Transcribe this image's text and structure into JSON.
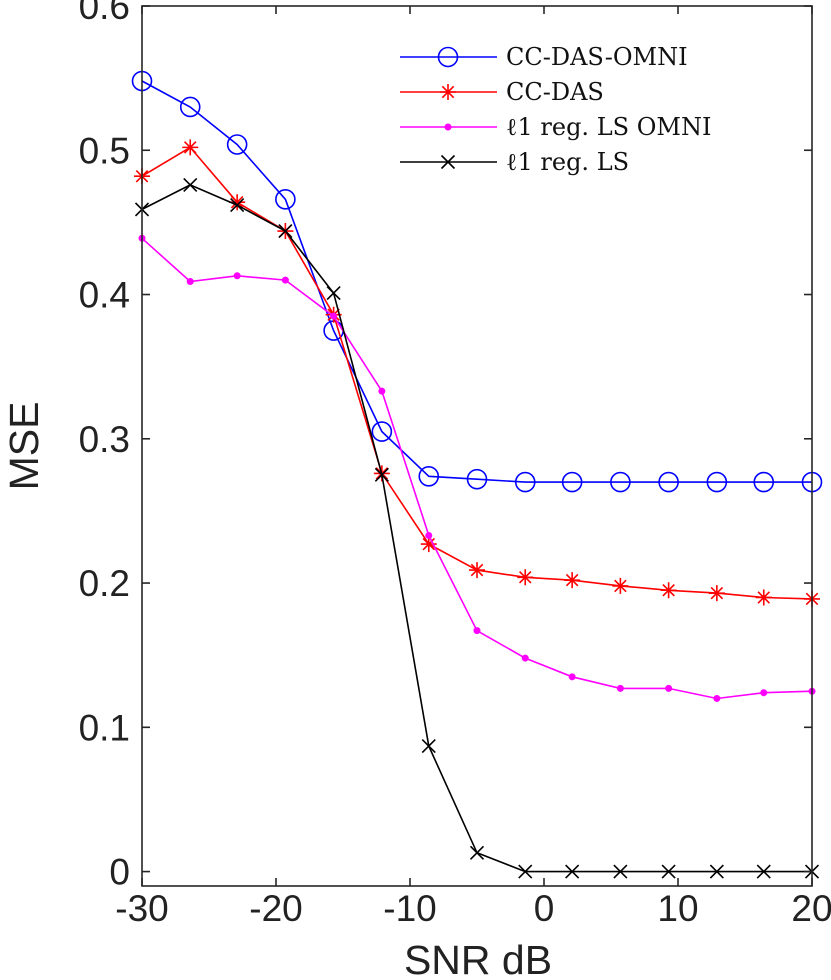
{
  "chart_data": {
    "type": "line",
    "title": "",
    "xlabel": "SNR  dB",
    "ylabel": "MSE",
    "xlim": [
      -30,
      20
    ],
    "ylim": [
      -0.01,
      0.6
    ],
    "x_ticks": [
      -30,
      -20,
      -10,
      0,
      10,
      20
    ],
    "x_tick_labels": [
      "-30",
      "-20",
      "-10",
      "0",
      "10",
      "20"
    ],
    "y_ticks": [
      0,
      0.1,
      0.2,
      0.3,
      0.4,
      0.5,
      0.6
    ],
    "y_tick_labels": [
      "0",
      "0.1",
      "0.2",
      "0.3",
      "0.4",
      "0.5",
      "0.6"
    ],
    "grid": false,
    "legend_position": "top-right",
    "x": [
      -30,
      -26.4,
      -22.9,
      -19.3,
      -15.7,
      -12.1,
      -8.6,
      -5,
      -1.4,
      2.1,
      5.7,
      9.3,
      12.9,
      16.4,
      20
    ],
    "series": [
      {
        "name": "CC-DAS-OMNI",
        "color": "#0000ff",
        "marker": "circle",
        "values": [
          0.548,
          0.53,
          0.504,
          0.466,
          0.375,
          0.305,
          0.274,
          0.272,
          0.27,
          0.27,
          0.27,
          0.27,
          0.27,
          0.27,
          0.27
        ]
      },
      {
        "name": "CC-DAS",
        "color": "#ff0000",
        "marker": "asterisk",
        "values": [
          0.482,
          0.502,
          0.464,
          0.444,
          0.386,
          0.276,
          0.227,
          0.209,
          0.204,
          0.202,
          0.198,
          0.195,
          0.193,
          0.19,
          0.189
        ]
      },
      {
        "name": "ℓ1 reg. LS OMNI",
        "color": "#ff00ff",
        "marker": "dot",
        "values": [
          0.439,
          0.409,
          0.413,
          0.41,
          0.385,
          0.333,
          0.233,
          0.167,
          0.148,
          0.135,
          0.127,
          0.127,
          0.12,
          0.124,
          0.125
        ]
      },
      {
        "name": "ℓ1 reg. LS",
        "color": "#000000",
        "marker": "x",
        "values": [
          0.459,
          0.476,
          0.462,
          0.444,
          0.401,
          0.275,
          0.087,
          0.013,
          0,
          0,
          0,
          0,
          0,
          0,
          0
        ]
      }
    ]
  }
}
